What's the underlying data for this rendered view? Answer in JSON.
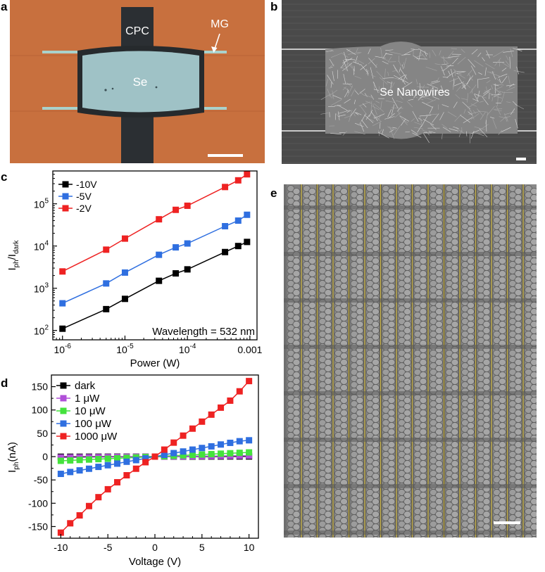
{
  "panels": {
    "a": {
      "letter": "a",
      "labels": {
        "cpc": "CPC",
        "mg": "MG",
        "se": "Se"
      }
    },
    "b": {
      "letter": "b",
      "labels": {
        "nanowires": "Se Nanowires"
      }
    },
    "c": {
      "letter": "c"
    },
    "d": {
      "letter": "d"
    },
    "e": {
      "letter": "e"
    }
  },
  "colors": {
    "black": "#000000",
    "blue": "#2f6fe0",
    "red": "#ee2222",
    "purple": "#b04fd8",
    "green": "#44e23c",
    "substrate": "#c8703e",
    "cpc": "#2b2f33",
    "se_film": "#9fc2c6",
    "sem_bg": "#4a4a4a",
    "fabric": "#7b7b7b",
    "wire": "#d8c25a"
  },
  "chart_data": [
    {
      "panel": "c",
      "type": "line",
      "xscale": "log",
      "yscale": "log",
      "xlabel": "Power (W)",
      "ylabel_main": "I",
      "ylabel_sub1": "ph",
      "ylabel_slash": "/I",
      "ylabel_sub2": "dark",
      "xlim": [
        7e-07,
        0.0013
      ],
      "ylim": [
        60,
        600000
      ],
      "xticks": [
        {
          "value": 1e-06,
          "base": "10",
          "exp": "-6"
        },
        {
          "value": 1e-05,
          "base": "10",
          "exp": "-5"
        },
        {
          "value": 0.0001,
          "base": "10",
          "exp": "-4"
        },
        {
          "value": 0.001,
          "label": "0.001"
        }
      ],
      "yticks": [
        {
          "value": 100,
          "base": "10",
          "exp": "2"
        },
        {
          "value": 1000,
          "base": "10",
          "exp": "3"
        },
        {
          "value": 10000,
          "base": "10",
          "exp": "4"
        },
        {
          "value": 100000,
          "base": "10",
          "exp": "5"
        }
      ],
      "annotation": "Wavelength = 532 nm",
      "legend_position": "top-left",
      "x": [
        1e-06,
        5e-06,
        1e-05,
        3.5e-05,
        6.5e-05,
        0.0001,
        0.0004,
        0.00065,
        0.0009
      ],
      "series": [
        {
          "name": "-10V",
          "color": "#000000",
          "values": [
            110,
            320,
            560,
            1500,
            2250,
            2800,
            7200,
            10000,
            12500
          ]
        },
        {
          "name": "-5V",
          "color": "#2f6fe0",
          "values": [
            440,
            1300,
            2350,
            6200,
            9300,
            11500,
            29500,
            40000,
            55000
          ]
        },
        {
          "name": "-2V",
          "color": "#ee2222",
          "values": [
            2500,
            8200,
            15000,
            43000,
            72000,
            90000,
            250000,
            360000,
            500000
          ]
        }
      ]
    },
    {
      "panel": "d",
      "type": "line",
      "xlabel": "Voltage (V)",
      "ylabel_main": "I",
      "ylabel_sub": "ph",
      "ylabel_unit": "(nA)",
      "xlim": [
        -11,
        11
      ],
      "ylim": [
        -175,
        175
      ],
      "xticks": [
        -10,
        -5,
        0,
        5,
        10
      ],
      "yticks": [
        -150,
        -100,
        -50,
        0,
        50,
        100,
        150
      ],
      "legend_position": "top-left",
      "x": [
        -10,
        -9,
        -8,
        -7,
        -6,
        -5,
        -4,
        -3,
        -2,
        -1,
        0,
        1,
        2,
        3,
        4,
        5,
        6,
        7,
        8,
        9,
        10
      ],
      "series": [
        {
          "name": "dark",
          "color": "#000000",
          "values": [
            -0.3,
            -0.3,
            -0.3,
            -0.2,
            -0.2,
            -0.2,
            -0.1,
            -0.1,
            -0.1,
            0,
            0,
            0,
            0.1,
            0.1,
            0.1,
            0.2,
            0.2,
            0.2,
            0.3,
            0.3,
            0.3
          ]
        },
        {
          "name": "1 μW",
          "color": "#b04fd8",
          "values": [
            -2,
            -1.8,
            -1.6,
            -1.4,
            -1.2,
            -1,
            -0.8,
            -0.6,
            -0.4,
            -0.2,
            0,
            0.2,
            0.4,
            0.6,
            0.8,
            1,
            1.2,
            1.4,
            1.6,
            1.8,
            2
          ]
        },
        {
          "name": "10 μW",
          "color": "#44e23c",
          "values": [
            -9,
            -8.1,
            -7.2,
            -6.3,
            -5.4,
            -4.5,
            -3.6,
            -2.7,
            -1.8,
            -0.9,
            0,
            0.9,
            1.8,
            2.7,
            3.6,
            4.5,
            5.4,
            6.3,
            7.2,
            8.1,
            9
          ]
        },
        {
          "name": "100 μW",
          "color": "#2f6fe0",
          "values": [
            -37,
            -33,
            -29.5,
            -26,
            -22,
            -18.5,
            -15,
            -11,
            -7.5,
            -3.7,
            0,
            3.7,
            7.5,
            11,
            15,
            18.5,
            22,
            26,
            29.5,
            33,
            35
          ]
        },
        {
          "name": "1000 μW",
          "color": "#ee2222",
          "values": [
            -163,
            -143,
            -126,
            -106,
            -87,
            -70,
            -55,
            -40,
            -26,
            -12,
            0,
            15,
            30,
            45,
            60,
            75,
            90,
            105,
            120,
            140,
            162
          ]
        }
      ]
    }
  ]
}
